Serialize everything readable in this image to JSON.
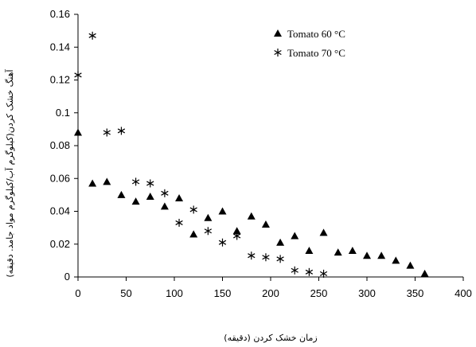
{
  "chart_data": {
    "type": "scatter",
    "xlabel": "زمان خشک کردن (دقیقه)",
    "ylabel": "آهنگ خشک کردن(کیلوگرم آب/کیلوگرم مواد جامد. دقیقه)",
    "xlim": [
      0,
      400
    ],
    "ylim": [
      0,
      0.16
    ],
    "x_ticks": [
      "0",
      "50",
      "100",
      "150",
      "200",
      "250",
      "300",
      "350",
      "400"
    ],
    "y_ticks": [
      "0",
      "0.02",
      "0.04",
      "0.06",
      "0.08",
      "0.1",
      "0.12",
      "0.14",
      "0.16"
    ],
    "grid": false,
    "legend_position": "top-right",
    "series": [
      {
        "name": "Tomato 60 °C",
        "marker": "triangle",
        "color": "#000000",
        "points": [
          [
            0,
            0.088
          ],
          [
            15,
            0.057
          ],
          [
            30,
            0.058
          ],
          [
            45,
            0.05
          ],
          [
            60,
            0.046
          ],
          [
            75,
            0.049
          ],
          [
            90,
            0.043
          ],
          [
            105,
            0.048
          ],
          [
            120,
            0.026
          ],
          [
            135,
            0.036
          ],
          [
            150,
            0.04
          ],
          [
            165,
            0.028
          ],
          [
            180,
            0.037
          ],
          [
            195,
            0.032
          ],
          [
            210,
            0.021
          ],
          [
            225,
            0.025
          ],
          [
            240,
            0.016
          ],
          [
            255,
            0.027
          ],
          [
            270,
            0.015
          ],
          [
            285,
            0.016
          ],
          [
            300,
            0.013
          ],
          [
            315,
            0.013
          ],
          [
            330,
            0.01
          ],
          [
            345,
            0.007
          ],
          [
            360,
            0.002
          ]
        ]
      },
      {
        "name": "Tomato 70 °C",
        "marker": "asterisk",
        "color": "#000000",
        "points": [
          [
            0,
            0.123
          ],
          [
            15,
            0.147
          ],
          [
            30,
            0.088
          ],
          [
            45,
            0.089
          ],
          [
            60,
            0.058
          ],
          [
            75,
            0.057
          ],
          [
            90,
            0.051
          ],
          [
            105,
            0.033
          ],
          [
            120,
            0.041
          ],
          [
            135,
            0.028
          ],
          [
            150,
            0.021
          ],
          [
            165,
            0.025
          ],
          [
            180,
            0.013
          ],
          [
            195,
            0.012
          ],
          [
            210,
            0.011
          ],
          [
            225,
            0.004
          ],
          [
            240,
            0.003
          ],
          [
            255,
            0.002
          ]
        ]
      }
    ]
  }
}
